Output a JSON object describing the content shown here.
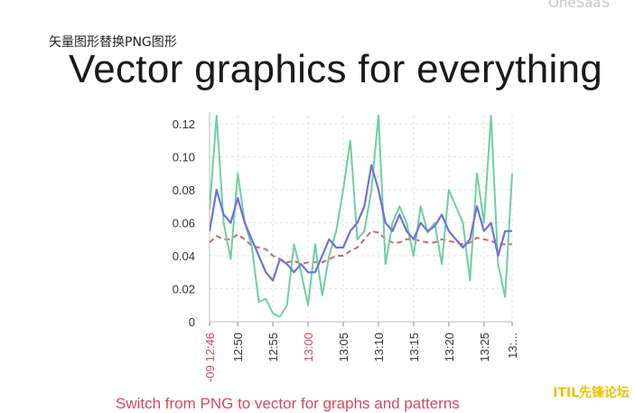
{
  "watermark_top": "OneSaaS",
  "caption": "矢量图形替换PNG图形",
  "slide_title": "Vector graphics for everything",
  "bottom_text": "Switch from PNG to vector for graphs and patterns",
  "site_badge": "ITIL先锋论坛",
  "chart_data": {
    "type": "line",
    "title": "",
    "xlabel": "",
    "ylabel": "",
    "ylim": [
      0,
      0.125
    ],
    "xlim": [
      "12:46",
      "13:29"
    ],
    "grid": true,
    "y_ticks": [
      "0",
      "0.02",
      "0.04",
      "0.06",
      "0.08",
      "0.10",
      "0.12"
    ],
    "x_tick_labels": [
      {
        "t": "12:46",
        "label": "-09 12:46",
        "highlight": true
      },
      {
        "t": "12:50",
        "label": "12:50",
        "highlight": false
      },
      {
        "t": "12:55",
        "label": "12:55",
        "highlight": false
      },
      {
        "t": "13:00",
        "label": "13:00",
        "highlight": true
      },
      {
        "t": "13:05",
        "label": "13:05",
        "highlight": false
      },
      {
        "t": "13:10",
        "label": "13:10",
        "highlight": false
      },
      {
        "t": "13:15",
        "label": "13:15",
        "highlight": false
      },
      {
        "t": "13:20",
        "label": "13:20",
        "highlight": false
      },
      {
        "t": "13:25",
        "label": "13:25",
        "highlight": false
      },
      {
        "t": "13:29",
        "label": "13:...",
        "highlight": false
      }
    ],
    "series": [
      {
        "color": "#6fcfa3",
        "dash": false,
        "x": [
          "12:46",
          "12:47",
          "12:48",
          "12:49",
          "12:50",
          "12:51",
          "12:52",
          "12:53",
          "12:54",
          "12:55",
          "12:56",
          "12:57",
          "12:58",
          "12:59",
          "13:00",
          "13:01",
          "13:02",
          "13:03",
          "13:04",
          "13:05",
          "13:06",
          "13:07",
          "13:08",
          "13:09",
          "13:10",
          "13:11",
          "13:12",
          "13:13",
          "13:14",
          "13:15",
          "13:16",
          "13:17",
          "13:18",
          "13:19",
          "13:20",
          "13:21",
          "13:22",
          "13:23",
          "13:24",
          "13:25",
          "13:26",
          "13:27",
          "13:28",
          "13:29"
        ],
        "values": [
          0.068,
          0.125,
          0.06,
          0.038,
          0.09,
          0.06,
          0.046,
          0.012,
          0.014,
          0.005,
          0.003,
          0.01,
          0.047,
          0.03,
          0.01,
          0.047,
          0.016,
          0.04,
          0.055,
          0.08,
          0.11,
          0.05,
          0.055,
          0.08,
          0.125,
          0.035,
          0.06,
          0.07,
          0.06,
          0.04,
          0.07,
          0.054,
          0.06,
          0.035,
          0.08,
          0.07,
          0.06,
          0.025,
          0.09,
          0.06,
          0.125,
          0.035,
          0.015,
          0.09
        ]
      },
      {
        "color": "#6f72d8",
        "dash": false,
        "x": [
          "12:46",
          "12:47",
          "12:48",
          "12:49",
          "12:50",
          "12:51",
          "12:52",
          "12:53",
          "12:54",
          "12:55",
          "12:56",
          "12:57",
          "12:58",
          "12:59",
          "13:00",
          "13:01",
          "13:02",
          "13:03",
          "13:04",
          "13:05",
          "13:06",
          "13:07",
          "13:08",
          "13:09",
          "13:10",
          "13:11",
          "13:12",
          "13:13",
          "13:14",
          "13:15",
          "13:16",
          "13:17",
          "13:18",
          "13:19",
          "13:20",
          "13:21",
          "13:22",
          "13:23",
          "13:24",
          "13:25",
          "13:26",
          "13:27",
          "13:28",
          "13:29"
        ],
        "values": [
          0.055,
          0.08,
          0.065,
          0.06,
          0.075,
          0.06,
          0.05,
          0.04,
          0.03,
          0.025,
          0.038,
          0.035,
          0.03,
          0.035,
          0.03,
          0.03,
          0.04,
          0.05,
          0.045,
          0.045,
          0.055,
          0.06,
          0.07,
          0.095,
          0.08,
          0.06,
          0.055,
          0.065,
          0.055,
          0.05,
          0.06,
          0.055,
          0.058,
          0.065,
          0.055,
          0.05,
          0.045,
          0.05,
          0.07,
          0.055,
          0.06,
          0.04,
          0.055,
          0.055
        ]
      },
      {
        "color": "#c96a74",
        "dash": true,
        "x": [
          "12:46",
          "12:47",
          "12:48",
          "12:49",
          "12:50",
          "12:51",
          "12:52",
          "12:53",
          "12:54",
          "12:55",
          "12:56",
          "12:57",
          "12:58",
          "12:59",
          "13:00",
          "13:01",
          "13:02",
          "13:03",
          "13:04",
          "13:05",
          "13:06",
          "13:07",
          "13:08",
          "13:09",
          "13:10",
          "13:11",
          "13:12",
          "13:13",
          "13:14",
          "13:15",
          "13:16",
          "13:17",
          "13:18",
          "13:19",
          "13:20",
          "13:21",
          "13:22",
          "13:23",
          "13:24",
          "13:25",
          "13:26",
          "13:27",
          "13:28",
          "13:29"
        ],
        "values": [
          0.048,
          0.052,
          0.05,
          0.05,
          0.053,
          0.05,
          0.046,
          0.045,
          0.044,
          0.04,
          0.038,
          0.036,
          0.037,
          0.035,
          0.036,
          0.036,
          0.036,
          0.038,
          0.04,
          0.04,
          0.043,
          0.045,
          0.05,
          0.055,
          0.054,
          0.05,
          0.048,
          0.048,
          0.05,
          0.05,
          0.049,
          0.048,
          0.048,
          0.05,
          0.049,
          0.048,
          0.047,
          0.048,
          0.051,
          0.05,
          0.049,
          0.047,
          0.047,
          0.047
        ]
      }
    ]
  }
}
